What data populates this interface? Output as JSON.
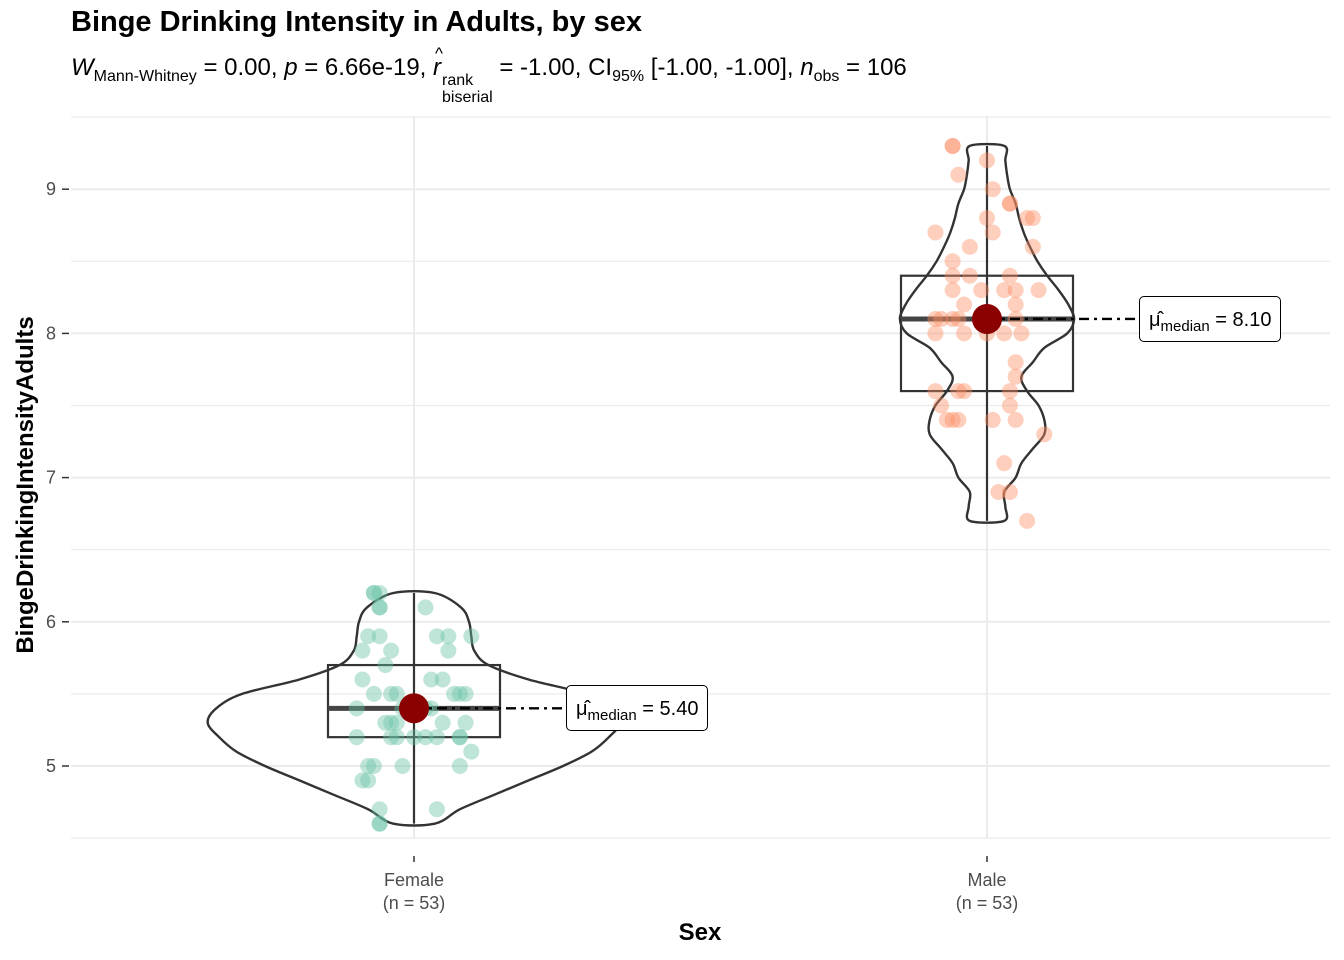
{
  "chart_data": {
    "type": "violin-box-scatter",
    "title": "Binge Drinking Intensity in Adults, by sex",
    "subtitle": {
      "stat_symbol": "W",
      "stat_sub": "Mann-Whitney",
      "stat_value": " = 0.00, ",
      "p_symbol": "p",
      "p_value": " = 6.66e-19, ",
      "r_symbol": "r",
      "r_sup": "rank",
      "r_sub": "biserial",
      "r_value": " = -1.00, ",
      "ci_symbol": "CI",
      "ci_sub": "95%",
      "ci_value": " [-1.00, -1.00], ",
      "n_symbol": "n",
      "n_sub": "obs",
      "n_value": " = 106"
    },
    "xlabel": "Sex",
    "ylabel": "BingeDrinkingIntensityAdults",
    "ylim": [
      4.5,
      9.5
    ],
    "yticks": [
      5,
      6,
      7,
      8,
      9
    ],
    "grid": true,
    "groups": [
      {
        "name": "Female",
        "n_label": "(n = 53)",
        "color": "#66c2a5",
        "median": 5.4,
        "q1": 5.2,
        "q3": 5.7,
        "min": 4.6,
        "max": 6.2,
        "median_label": "= 5.40",
        "points": [
          6.2,
          6.2,
          6.1,
          6.1,
          6.2,
          6.1,
          5.9,
          5.9,
          5.9,
          5.9,
          5.9,
          5.8,
          5.8,
          5.8,
          5.7,
          5.6,
          5.6,
          5.5,
          5.5,
          5.5,
          5.5,
          5.5,
          5.5,
          5.4,
          5.4,
          5.4,
          5.4,
          5.3,
          5.3,
          5.3,
          5.3,
          5.2,
          5.2,
          5.2,
          5.2,
          5.2,
          5.2,
          5.2,
          5.2,
          5.1,
          5.0,
          5.0,
          5.0,
          5.0,
          4.9,
          4.9,
          4.7,
          4.7,
          4.6,
          4.6,
          5.4,
          5.6,
          5.3
        ],
        "jitter": [
          -0.07,
          -0.07,
          -0.06,
          0.02,
          -0.06,
          -0.06,
          -0.08,
          -0.06,
          0.04,
          0.06,
          0.1,
          -0.09,
          0.06,
          -0.04,
          -0.05,
          -0.09,
          0.03,
          -0.07,
          -0.04,
          0.07,
          0.08,
          0.09,
          -0.03,
          -0.1,
          0.0,
          0.02,
          0.03,
          -0.05,
          -0.04,
          -0.03,
          0.09,
          -0.1,
          -0.04,
          -0.03,
          0.0,
          0.02,
          0.04,
          0.08,
          0.08,
          0.1,
          -0.08,
          -0.07,
          -0.02,
          0.08,
          -0.09,
          -0.08,
          -0.06,
          0.04,
          -0.06,
          -0.06,
          -0.02,
          0.05,
          0.05
        ]
      },
      {
        "name": "Male",
        "n_label": "(n = 53)",
        "color": "#fc8d62",
        "median": 8.1,
        "q1": 7.6,
        "q3": 8.4,
        "min": 6.7,
        "max": 9.3,
        "median_label": "= 8.10",
        "points": [
          9.3,
          9.3,
          9.2,
          9.1,
          9.0,
          8.9,
          8.8,
          8.8,
          8.8,
          8.7,
          8.7,
          8.6,
          8.6,
          8.5,
          8.4,
          8.4,
          8.4,
          8.3,
          8.3,
          8.3,
          8.3,
          8.3,
          8.2,
          8.2,
          8.1,
          8.1,
          8.1,
          8.1,
          8.1,
          8.0,
          8.0,
          8.0,
          8.0,
          8.0,
          7.8,
          7.7,
          7.6,
          7.6,
          7.6,
          7.6,
          7.5,
          7.5,
          7.4,
          7.4,
          7.4,
          7.4,
          7.4,
          7.3,
          7.1,
          6.9,
          6.9,
          6.7,
          8.9
        ],
        "jitter": [
          -0.06,
          -0.06,
          0.0,
          -0.05,
          0.01,
          0.04,
          0.0,
          0.07,
          0.08,
          -0.09,
          0.01,
          -0.03,
          0.08,
          -0.06,
          -0.06,
          -0.03,
          0.04,
          -0.06,
          -0.01,
          0.03,
          0.05,
          0.09,
          -0.04,
          0.05,
          -0.09,
          -0.08,
          -0.06,
          -0.05,
          0.05,
          -0.09,
          -0.04,
          0.0,
          0.03,
          0.06,
          0.05,
          0.05,
          -0.09,
          -0.05,
          -0.04,
          0.04,
          -0.08,
          0.04,
          -0.07,
          -0.06,
          -0.05,
          0.01,
          0.05,
          0.1,
          0.03,
          0.02,
          0.04,
          0.07,
          0.04
        ]
      }
    ]
  }
}
